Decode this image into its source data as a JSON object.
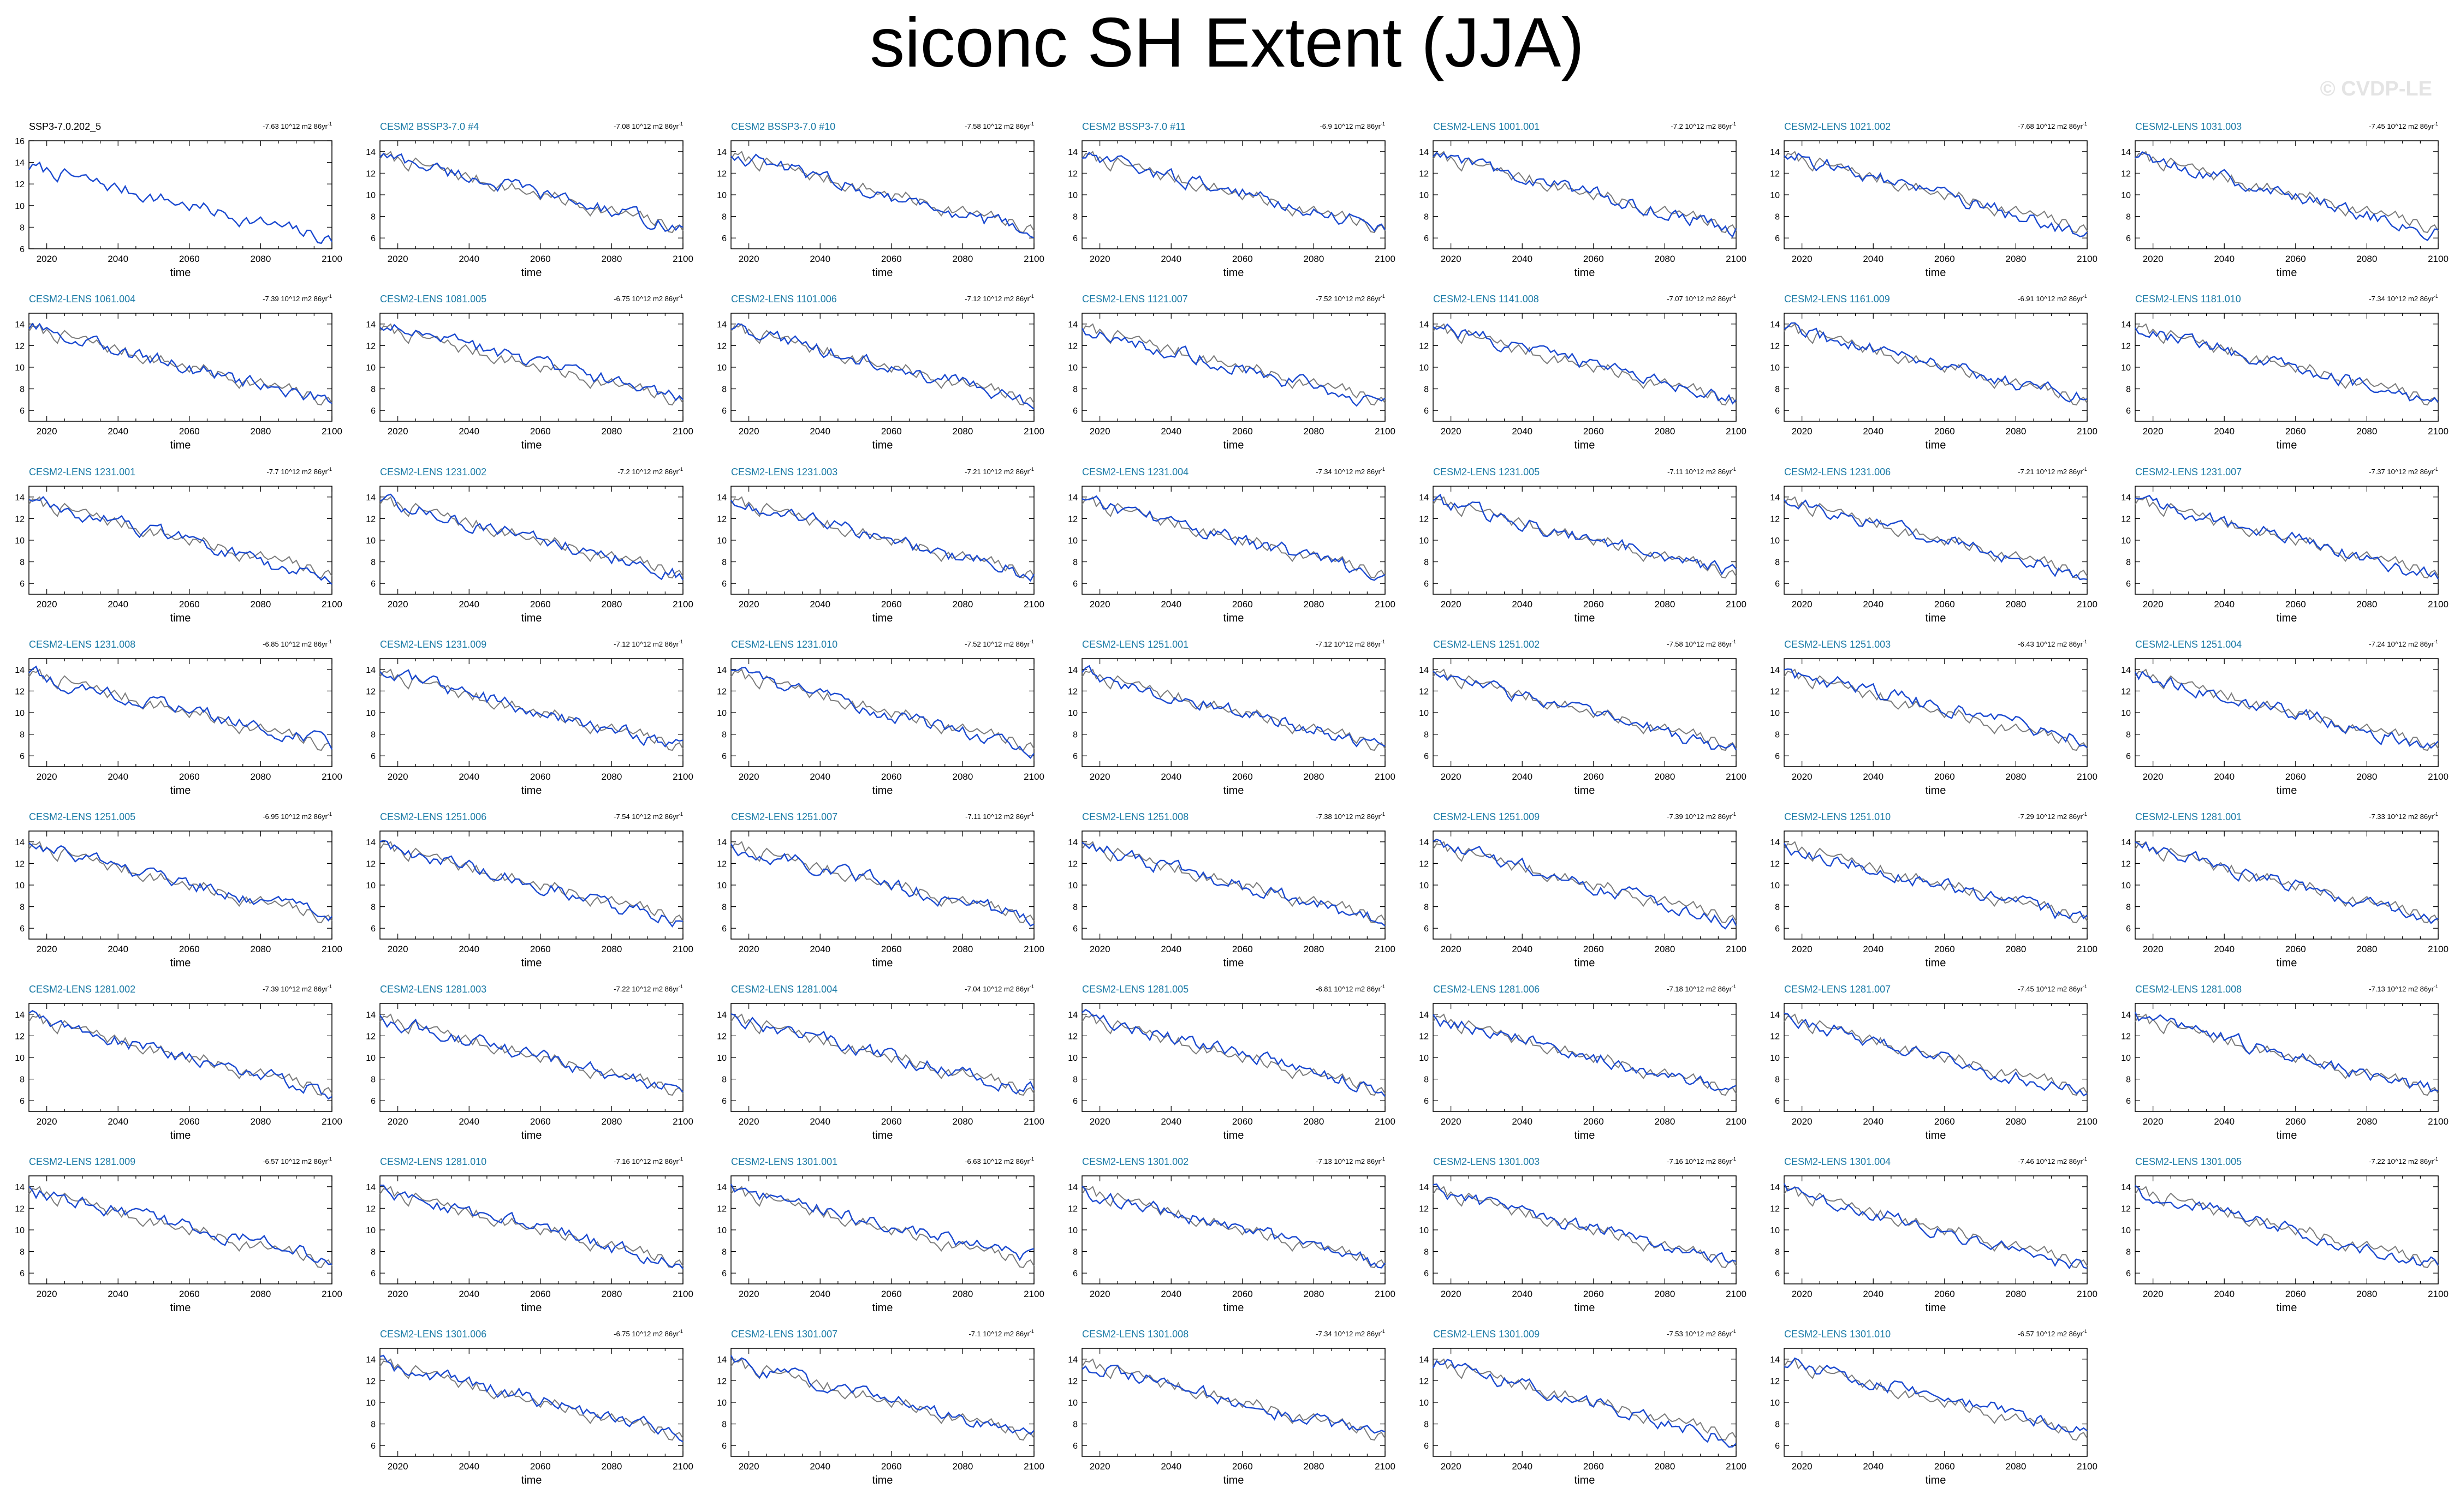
{
  "title": "siconc SH Extent (JJA)",
  "watermark": "© CVDP-LE",
  "colors": {
    "ensemble": "#1a49d0",
    "observation": "#7c7c7c",
    "obs_title": "#000000",
    "ens_title": "#1a7aa6"
  },
  "chart_data": {
    "type": "line",
    "xlabel": "time",
    "xlim": [
      2015,
      2100
    ],
    "xticks": [
      2020,
      2040,
      2060,
      2080,
      2100
    ],
    "unit_suffix": "10^12 m2 86yr",
    "grid": false,
    "panels": [
      {
        "name": "SSP3-7.0.202_5",
        "trend": "-7.63",
        "ylim": [
          6,
          16
        ],
        "yticks": [
          6,
          8,
          10,
          12,
          14,
          16
        ],
        "obs": true
      },
      {
        "name": "CESM2 BSSP3-7.0 #4",
        "trend": "-7.08"
      },
      {
        "name": "CESM2 BSSP3-7.0 #10",
        "trend": "-7.58"
      },
      {
        "name": "CESM2 BSSP3-7.0 #11",
        "trend": "-6.9"
      },
      {
        "name": "CESM2-LENS 1001.001",
        "trend": "-7.2"
      },
      {
        "name": "CESM2-LENS 1021.002",
        "trend": "-7.68"
      },
      {
        "name": "CESM2-LENS 1031.003",
        "trend": "-7.45"
      },
      {
        "name": "CESM2-LENS 1061.004",
        "trend": "-7.39"
      },
      {
        "name": "CESM2-LENS 1081.005",
        "trend": "-6.75"
      },
      {
        "name": "CESM2-LENS 1101.006",
        "trend": "-7.12"
      },
      {
        "name": "CESM2-LENS 1121.007",
        "trend": "-7.52"
      },
      {
        "name": "CESM2-LENS 1141.008",
        "trend": "-7.07"
      },
      {
        "name": "CESM2-LENS 1161.009",
        "trend": "-6.91"
      },
      {
        "name": "CESM2-LENS 1181.010",
        "trend": "-7.34"
      },
      {
        "name": "CESM2-LENS 1231.001",
        "trend": "-7.7"
      },
      {
        "name": "CESM2-LENS 1231.002",
        "trend": "-7.2"
      },
      {
        "name": "CESM2-LENS 1231.003",
        "trend": "-7.21"
      },
      {
        "name": "CESM2-LENS 1231.004",
        "trend": "-7.34"
      },
      {
        "name": "CESM2-LENS 1231.005",
        "trend": "-7.11"
      },
      {
        "name": "CESM2-LENS 1231.006",
        "trend": "-7.21"
      },
      {
        "name": "CESM2-LENS 1231.007",
        "trend": "-7.37"
      },
      {
        "name": "CESM2-LENS 1231.008",
        "trend": "-6.85"
      },
      {
        "name": "CESM2-LENS 1231.009",
        "trend": "-7.12"
      },
      {
        "name": "CESM2-LENS 1231.010",
        "trend": "-7.52"
      },
      {
        "name": "CESM2-LENS 1251.001",
        "trend": "-7.12"
      },
      {
        "name": "CESM2-LENS 1251.002",
        "trend": "-7.58"
      },
      {
        "name": "CESM2-LENS 1251.003",
        "trend": "-6.43"
      },
      {
        "name": "CESM2-LENS 1251.004",
        "trend": "-7.24"
      },
      {
        "name": "CESM2-LENS 1251.005",
        "trend": "-6.95"
      },
      {
        "name": "CESM2-LENS 1251.006",
        "trend": "-7.54"
      },
      {
        "name": "CESM2-LENS 1251.007",
        "trend": "-7.11"
      },
      {
        "name": "CESM2-LENS 1251.008",
        "trend": "-7.38"
      },
      {
        "name": "CESM2-LENS 1251.009",
        "trend": "-7.39"
      },
      {
        "name": "CESM2-LENS 1251.010",
        "trend": "-7.29"
      },
      {
        "name": "CESM2-LENS 1281.001",
        "trend": "-7.33"
      },
      {
        "name": "CESM2-LENS 1281.002",
        "trend": "-7.39"
      },
      {
        "name": "CESM2-LENS 1281.003",
        "trend": "-7.22"
      },
      {
        "name": "CESM2-LENS 1281.004",
        "trend": "-7.04"
      },
      {
        "name": "CESM2-LENS 1281.005",
        "trend": "-6.81"
      },
      {
        "name": "CESM2-LENS 1281.006",
        "trend": "-7.18"
      },
      {
        "name": "CESM2-LENS 1281.007",
        "trend": "-7.45"
      },
      {
        "name": "CESM2-LENS 1281.008",
        "trend": "-7.13"
      },
      {
        "name": "CESM2-LENS 1281.009",
        "trend": "-6.57"
      },
      {
        "name": "CESM2-LENS 1281.010",
        "trend": "-7.16"
      },
      {
        "name": "CESM2-LENS 1301.001",
        "trend": "-6.63"
      },
      {
        "name": "CESM2-LENS 1301.002",
        "trend": "-7.13"
      },
      {
        "name": "CESM2-LENS 1301.003",
        "trend": "-7.16"
      },
      {
        "name": "CESM2-LENS 1301.004",
        "trend": "-7.46"
      },
      {
        "name": "CESM2-LENS 1301.005",
        "trend": "-7.22"
      },
      {
        "name": "CESM2-LENS 1301.006",
        "trend": "-6.75"
      },
      {
        "name": "CESM2-LENS 1301.007",
        "trend": "-7.1"
      },
      {
        "name": "CESM2-LENS 1301.008",
        "trend": "-7.34"
      },
      {
        "name": "CESM2-LENS 1301.009",
        "trend": "-7.53"
      },
      {
        "name": "CESM2-LENS 1301.010",
        "trend": "-6.57"
      }
    ],
    "default_ylim": [
      5,
      15
    ],
    "default_yticks": [
      6,
      8,
      10,
      12,
      14
    ],
    "reference_series": {
      "start": 13.6,
      "end": 6.8
    }
  }
}
